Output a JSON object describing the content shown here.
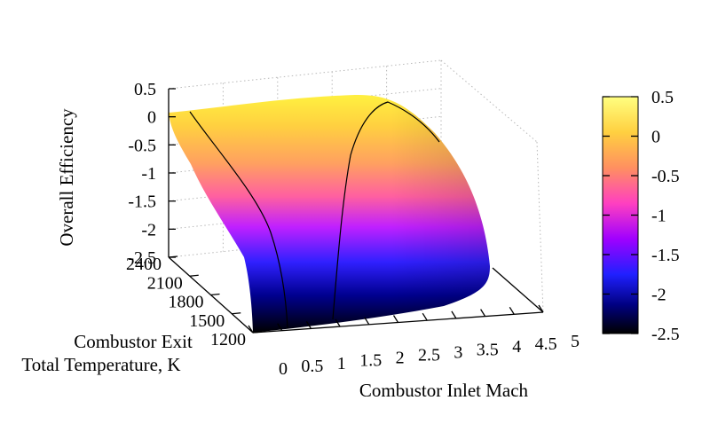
{
  "chart_data": {
    "type": "surface3d",
    "title": "",
    "xlabel": "Combustor Inlet Mach",
    "ylabel_lines": [
      "Combustor Exit",
      "Total Temperature, K"
    ],
    "zlabel": "Overall Efficiency",
    "x_ticks": [
      "0",
      "0.5",
      "1",
      "1.5",
      "2",
      "2.5",
      "3",
      "3.5",
      "4",
      "4.5",
      "5"
    ],
    "y_ticks": [
      "1200",
      "1500",
      "1800",
      "2100",
      "2400"
    ],
    "z_ticks": [
      "0.5",
      "0",
      "-0.5",
      "-1",
      "-1.5",
      "-2",
      "-2.5"
    ],
    "colorbar_ticks": [
      "0.5",
      "0",
      "-0.5",
      "-1",
      "-1.5",
      "-2",
      "-2.5"
    ],
    "xlim": [
      0,
      5
    ],
    "ylim": [
      1200,
      2400
    ],
    "zlim": [
      -2.5,
      0.5
    ],
    "colormap": [
      "#000000",
      "#0000ff",
      "#a000ff",
      "#ff40c0",
      "#ff9060",
      "#ffc040",
      "#ffff80"
    ],
    "contours": [
      {
        "level": 0,
        "edge_high_T_mach": [
          0.5,
          3.85
        ]
      }
    ]
  }
}
